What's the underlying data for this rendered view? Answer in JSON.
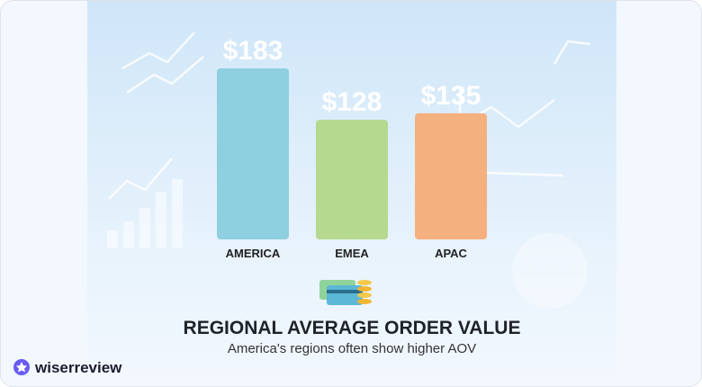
{
  "chart_data": {
    "type": "bar",
    "title": "REGIONAL AVERAGE ORDER VALUE",
    "subtitle": "America's regions often show higher AOV",
    "categories": [
      "AMERICA",
      "EMEA",
      "APAC"
    ],
    "values": [
      183,
      128,
      135
    ],
    "value_labels": [
      "$183",
      "$128",
      "$135"
    ],
    "colors": [
      "#8ecfe0",
      "#b5d98f",
      "#f4b07e"
    ]
  },
  "brand": "wiserreview"
}
